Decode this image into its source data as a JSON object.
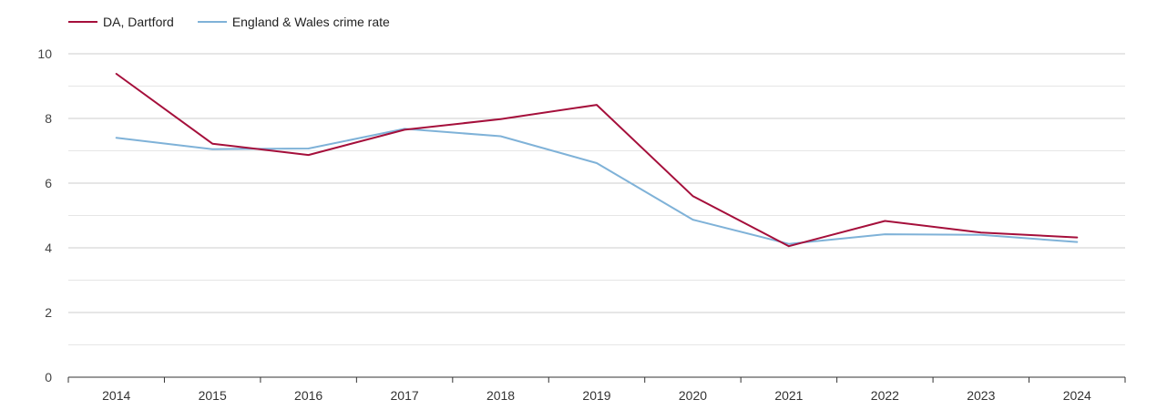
{
  "chart_data": {
    "type": "line",
    "x": [
      "2014",
      "2015",
      "2016",
      "2017",
      "2018",
      "2019",
      "2020",
      "2021",
      "2022",
      "2023",
      "2024"
    ],
    "series": [
      {
        "name": "DA, Dartford",
        "color": "#a50f3b",
        "values": [
          9.38,
          7.22,
          6.87,
          7.65,
          7.98,
          8.42,
          5.6,
          4.05,
          4.83,
          4.47,
          4.32
        ]
      },
      {
        "name": "England & Wales crime rate",
        "color": "#7fb2d8",
        "values": [
          7.4,
          7.05,
          7.07,
          7.68,
          7.45,
          6.62,
          4.87,
          4.12,
          4.42,
          4.4,
          4.18
        ]
      }
    ],
    "ylim": [
      0,
      10
    ],
    "yticks": [
      "0",
      "2",
      "4",
      "6",
      "8",
      "10"
    ],
    "grid": true,
    "legend_position": "top-left",
    "title": "",
    "xlabel": "",
    "ylabel": ""
  }
}
